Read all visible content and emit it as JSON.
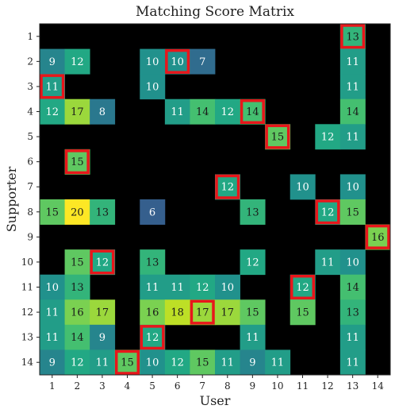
{
  "chart_data": {
    "type": "heatmap",
    "title": "Matching Score Matrix",
    "xlabel": "User",
    "ylabel": "Supporter",
    "x_categories": [
      "1",
      "2",
      "3",
      "4",
      "5",
      "6",
      "7",
      "8",
      "9",
      "10",
      "11",
      "12",
      "13",
      "14"
    ],
    "y_categories": [
      "1",
      "2",
      "3",
      "4",
      "5",
      "6",
      "7",
      "8",
      "9",
      "10",
      "11",
      "12",
      "13",
      "14"
    ],
    "value_range": [
      0,
      20
    ],
    "colormap": "viridis",
    "empty_color": "#000000",
    "highlight_color": "#e8161b",
    "values": [
      [
        null,
        null,
        null,
        null,
        null,
        null,
        null,
        null,
        null,
        null,
        null,
        null,
        13,
        null
      ],
      [
        9,
        12,
        null,
        null,
        10,
        10,
        7,
        null,
        null,
        null,
        null,
        null,
        11,
        null
      ],
      [
        11,
        null,
        null,
        null,
        10,
        null,
        null,
        null,
        null,
        null,
        null,
        null,
        11,
        null
      ],
      [
        12,
        17,
        8,
        null,
        null,
        11,
        14,
        12,
        14,
        null,
        null,
        null,
        14,
        null
      ],
      [
        null,
        null,
        null,
        null,
        null,
        null,
        null,
        null,
        null,
        15,
        null,
        12,
        11,
        null
      ],
      [
        null,
        15,
        null,
        null,
        null,
        null,
        null,
        null,
        null,
        null,
        null,
        null,
        null,
        null
      ],
      [
        null,
        null,
        null,
        null,
        null,
        null,
        null,
        12,
        null,
        null,
        10,
        null,
        10,
        null
      ],
      [
        15,
        20,
        13,
        null,
        6,
        null,
        null,
        null,
        13,
        null,
        null,
        12,
        15,
        null
      ],
      [
        null,
        null,
        null,
        null,
        null,
        null,
        null,
        null,
        null,
        null,
        null,
        null,
        null,
        16
      ],
      [
        null,
        15,
        12,
        null,
        13,
        null,
        null,
        null,
        12,
        null,
        null,
        11,
        10,
        null
      ],
      [
        10,
        13,
        null,
        null,
        11,
        11,
        12,
        10,
        null,
        null,
        12,
        null,
        14,
        null
      ],
      [
        11,
        16,
        17,
        null,
        16,
        18,
        17,
        17,
        15,
        null,
        15,
        null,
        13,
        null
      ],
      [
        11,
        14,
        9,
        null,
        12,
        null,
        null,
        null,
        11,
        null,
        null,
        null,
        11,
        null
      ],
      [
        9,
        12,
        11,
        15,
        10,
        12,
        15,
        11,
        9,
        11,
        null,
        null,
        11,
        null
      ]
    ],
    "highlighted": [
      [
        1,
        13
      ],
      [
        2,
        6
      ],
      [
        3,
        1
      ],
      [
        4,
        9
      ],
      [
        5,
        10
      ],
      [
        6,
        2
      ],
      [
        7,
        8
      ],
      [
        8,
        12
      ],
      [
        9,
        14
      ],
      [
        10,
        3
      ],
      [
        11,
        11
      ],
      [
        12,
        7
      ],
      [
        13,
        5
      ],
      [
        14,
        4
      ]
    ]
  }
}
